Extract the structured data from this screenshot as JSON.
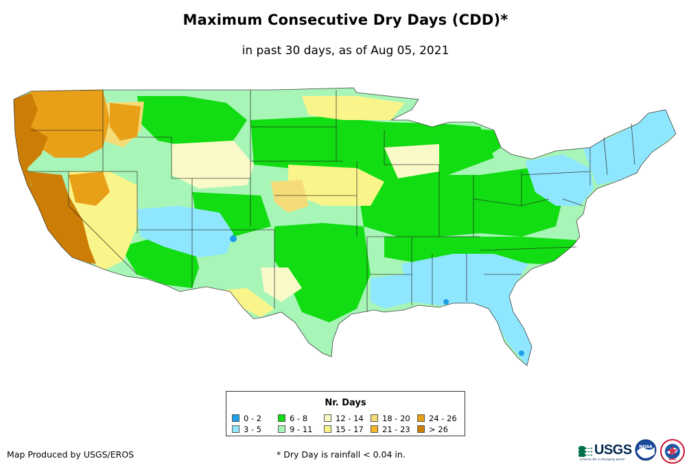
{
  "title": "Maximum Consecutive Dry Days (CDD)*",
  "subtitle": "in past 30 days, as of Aug 05, 2021",
  "legend": {
    "title": "Nr. Days",
    "items": [
      {
        "label": "0 - 2",
        "color": "#1e9ee8"
      },
      {
        "label": "3 - 5",
        "color": "#8fe6ff"
      },
      {
        "label": "6 - 8",
        "color": "#12dc12"
      },
      {
        "label": "9 - 11",
        "color": "#a8f5b8"
      },
      {
        "label": "12 - 14",
        "color": "#fafac8"
      },
      {
        "label": "15 - 17",
        "color": "#faf58a"
      },
      {
        "label": "18 - 20",
        "color": "#f6dc78"
      },
      {
        "label": "21 - 23",
        "color": "#f4b624"
      },
      {
        "label": "24 - 26",
        "color": "#e8a019"
      },
      {
        "label": "> 26",
        "color": "#cc7d05"
      }
    ]
  },
  "credit": "Map Produced by USGS/EROS",
  "footnote": "* Dry Day is rainfall < 0.04 in.",
  "logos": {
    "usgs": "USGS",
    "usgs_tagline": "science for a changing world",
    "noaa": "NOAA",
    "nws": "NWS"
  }
}
